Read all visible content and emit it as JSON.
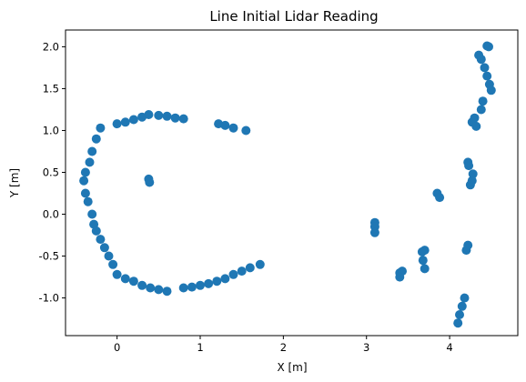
{
  "chart_data": {
    "type": "scatter",
    "title": "Line Initial Lidar Reading",
    "xlabel": "X [m]",
    "ylabel": "Y [m]",
    "xlim": [
      -0.62,
      4.82
    ],
    "ylim": [
      -1.45,
      2.2
    ],
    "x_ticks": [
      0,
      1,
      2,
      3,
      4
    ],
    "y_ticks": [
      -1.0,
      -0.5,
      0.0,
      0.5,
      1.0,
      1.5,
      2.0
    ],
    "grid": false,
    "legend": "none",
    "series_color": "#1f77b4",
    "series": [
      {
        "values": [
          [
            0.0,
            1.08
          ],
          [
            0.1,
            1.1
          ],
          [
            0.2,
            1.13
          ],
          [
            0.3,
            1.16
          ],
          [
            0.38,
            1.19
          ],
          [
            0.5,
            1.18
          ],
          [
            0.6,
            1.17
          ],
          [
            0.7,
            1.15
          ],
          [
            0.8,
            1.14
          ],
          [
            -0.2,
            1.03
          ],
          [
            -0.25,
            0.9
          ],
          [
            -0.3,
            0.75
          ],
          [
            -0.33,
            0.62
          ],
          [
            -0.38,
            0.5
          ],
          [
            -0.4,
            0.4
          ],
          [
            -0.38,
            0.25
          ],
          [
            -0.35,
            0.15
          ],
          [
            -0.3,
            0.0
          ],
          [
            -0.28,
            -0.12
          ],
          [
            -0.25,
            -0.2
          ],
          [
            -0.2,
            -0.3
          ],
          [
            -0.15,
            -0.4
          ],
          [
            -0.1,
            -0.5
          ],
          [
            -0.05,
            -0.6
          ],
          [
            0.0,
            -0.72
          ],
          [
            0.1,
            -0.77
          ],
          [
            0.2,
            -0.8
          ],
          [
            0.3,
            -0.85
          ],
          [
            0.4,
            -0.88
          ],
          [
            0.5,
            -0.9
          ],
          [
            0.6,
            -0.92
          ],
          [
            0.8,
            -0.88
          ],
          [
            0.9,
            -0.87
          ],
          [
            1.0,
            -0.85
          ],
          [
            1.1,
            -0.83
          ],
          [
            1.2,
            -0.8
          ],
          [
            1.3,
            -0.77
          ],
          [
            1.4,
            -0.72
          ],
          [
            1.5,
            -0.68
          ],
          [
            1.6,
            -0.64
          ],
          [
            1.72,
            -0.6
          ],
          [
            1.22,
            1.08
          ],
          [
            1.3,
            1.06
          ],
          [
            1.4,
            1.03
          ],
          [
            1.55,
            1.0
          ],
          [
            0.38,
            0.42
          ],
          [
            0.39,
            0.38
          ],
          [
            3.1,
            -0.1
          ],
          [
            3.1,
            -0.15
          ],
          [
            3.1,
            -0.22
          ],
          [
            3.4,
            -0.7
          ],
          [
            3.43,
            -0.68
          ],
          [
            3.4,
            -0.75
          ],
          [
            3.67,
            -0.45
          ],
          [
            3.7,
            -0.43
          ],
          [
            3.68,
            -0.55
          ],
          [
            3.7,
            -0.65
          ],
          [
            3.85,
            0.25
          ],
          [
            3.88,
            0.2
          ],
          [
            4.1,
            -1.3
          ],
          [
            4.12,
            -1.2
          ],
          [
            4.15,
            -1.1
          ],
          [
            4.18,
            -1.0
          ],
          [
            4.2,
            -0.43
          ],
          [
            4.22,
            -0.37
          ],
          [
            4.22,
            0.62
          ],
          [
            4.23,
            0.58
          ],
          [
            4.25,
            0.35
          ],
          [
            4.27,
            0.4
          ],
          [
            4.28,
            0.48
          ],
          [
            4.27,
            1.1
          ],
          [
            4.3,
            1.15
          ],
          [
            4.32,
            1.05
          ],
          [
            4.38,
            1.25
          ],
          [
            4.4,
            1.35
          ],
          [
            4.35,
            1.9
          ],
          [
            4.38,
            1.85
          ],
          [
            4.42,
            1.75
          ],
          [
            4.45,
            1.65
          ],
          [
            4.48,
            1.55
          ],
          [
            4.5,
            1.48
          ],
          [
            4.45,
            2.01
          ],
          [
            4.47,
            2.0
          ]
        ]
      }
    ]
  }
}
